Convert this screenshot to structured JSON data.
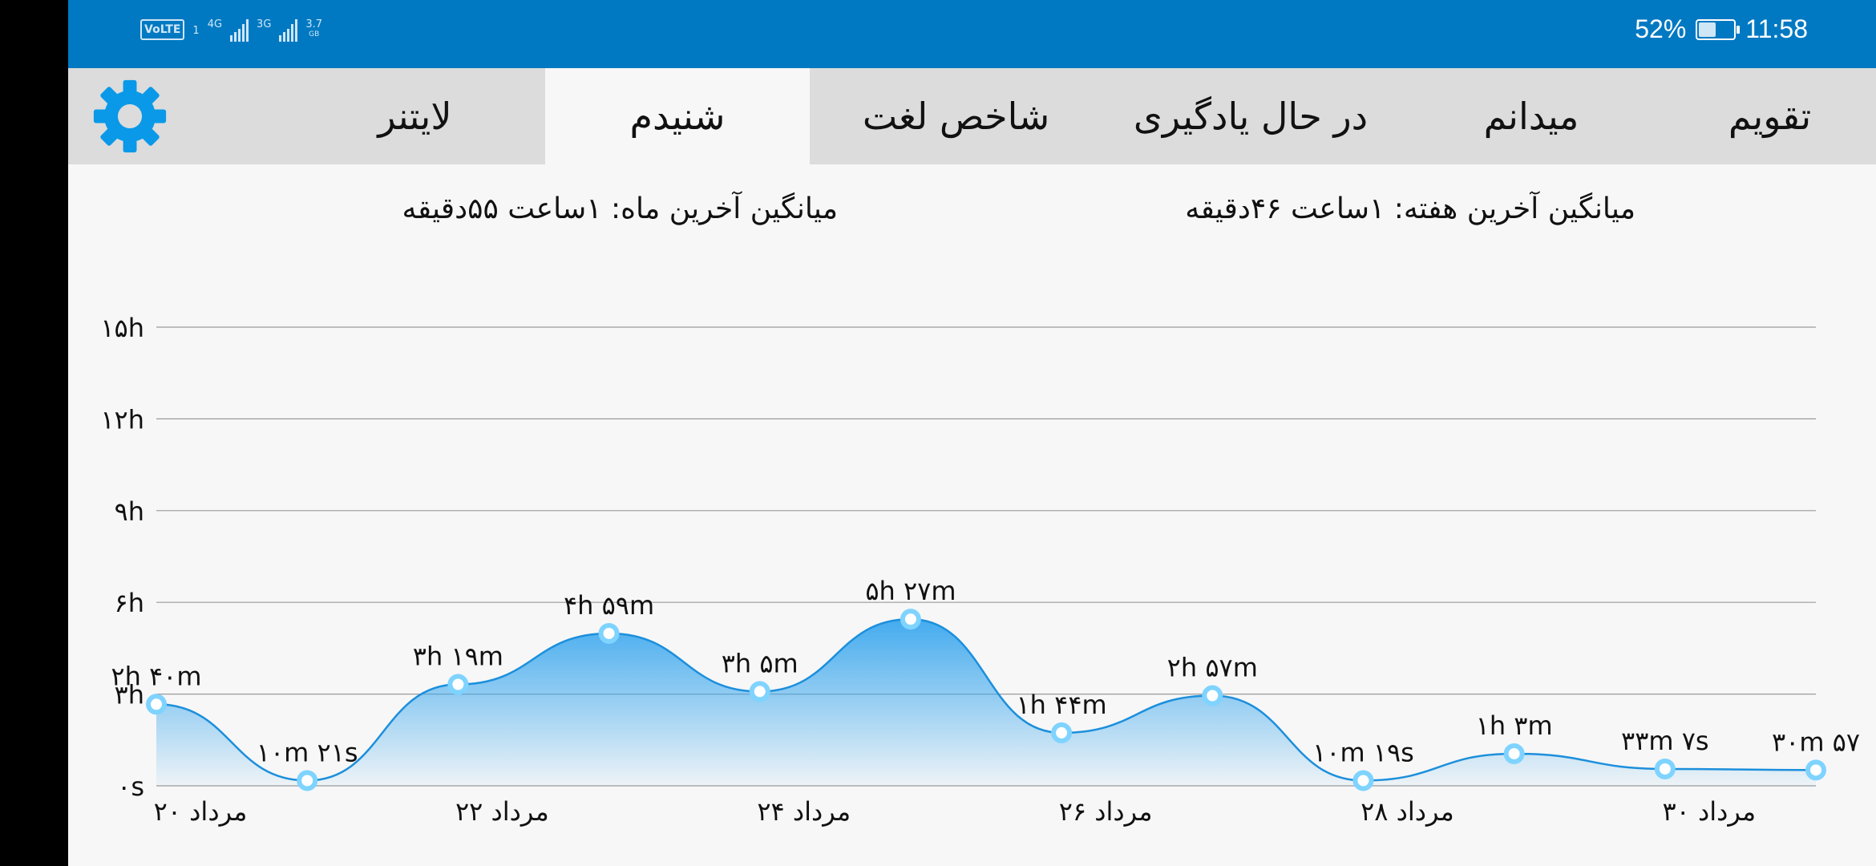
{
  "status_bar": {
    "volte": "VoLTE",
    "sim": "1",
    "net1": "4G",
    "net2": "3G",
    "speed": "3.7",
    "speed_unit": "GB",
    "battery_percent": "52%",
    "battery_level": 0.52,
    "time": "11:58"
  },
  "tabs": [
    {
      "label": "تقویم",
      "active": false
    },
    {
      "label": "میدانم",
      "active": false
    },
    {
      "label": "در حال یادگیری",
      "active": false
    },
    {
      "label": "شاخص لغت",
      "active": false
    },
    {
      "label": "شنیدم",
      "active": true
    },
    {
      "label": "لایتنر",
      "active": false
    }
  ],
  "settings_icon": "gear-icon",
  "averages": {
    "week": "میانگین آخرین هفته: ۱ساعت  ۴۶دقیقه",
    "month": "میانگین آخرین ماه: ۱ساعت  ۵۵دقیقه"
  },
  "colors": {
    "status_bar": "#0079c2",
    "accent": "#0a99e8",
    "point": "#7fd3ff"
  },
  "chart_data": {
    "type": "area",
    "ylim": [
      0,
      15
    ],
    "y_ticks": [
      {
        "value": 0,
        "label": "۰s"
      },
      {
        "value": 3,
        "label": "۳h"
      },
      {
        "value": 6,
        "label": "۶h"
      },
      {
        "value": 9,
        "label": "۹h"
      },
      {
        "value": 12,
        "label": "۱۲h"
      },
      {
        "value": 15,
        "label": "۱۵h"
      }
    ],
    "x_tick_labels": [
      {
        "index": 0,
        "label": "۲۰ مرداد"
      },
      {
        "index": 2,
        "label": "۲۲ مرداد"
      },
      {
        "index": 4,
        "label": "۲۴ مرداد"
      },
      {
        "index": 6,
        "label": "۲۶ مرداد"
      },
      {
        "index": 8,
        "label": "۲۸ مرداد"
      },
      {
        "index": 10,
        "label": "۳۰ مرداد"
      }
    ],
    "points": [
      {
        "value": 2.667,
        "label": "۲h ۴۰m"
      },
      {
        "value": 0.172,
        "label": "۱۰m ۲۱s"
      },
      {
        "value": 3.317,
        "label": "۳h ۱۹m"
      },
      {
        "value": 4.983,
        "label": "۴h ۵۹m"
      },
      {
        "value": 3.083,
        "label": "۳h ۵m"
      },
      {
        "value": 5.45,
        "label": "۵h ۲۷m"
      },
      {
        "value": 1.733,
        "label": "۱h ۴۴m"
      },
      {
        "value": 2.95,
        "label": "۲h ۵۷m"
      },
      {
        "value": 0.172,
        "label": "۱۰m ۱۹s"
      },
      {
        "value": 1.05,
        "label": "۱h ۳m"
      },
      {
        "value": 0.552,
        "label": "۳۳m ۷s"
      },
      {
        "value": 0.516,
        "label": "۳۰m ۵۷"
      }
    ]
  }
}
